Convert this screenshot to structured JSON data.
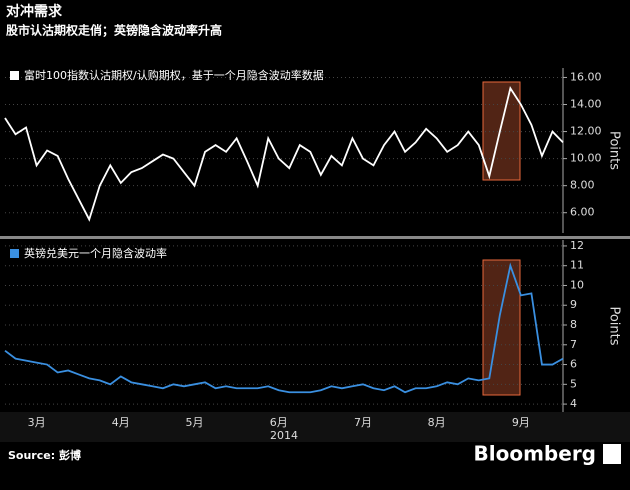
{
  "title": "对冲需求",
  "subtitle": "股市认沽期权走俏；英镑隐含波动率升高",
  "source": "Source: 彭博",
  "brand": "Bloomberg",
  "chart_data": [
    {
      "type": "line",
      "ylabel": "Points",
      "series": [
        {
          "name": "富时100指数认沽期权/认购期权，基于一个月隐含波动率数据",
          "color": "#ffffff",
          "values": [
            13.0,
            11.8,
            12.3,
            9.5,
            10.6,
            10.2,
            8.5,
            7.0,
            5.5,
            8.0,
            9.5,
            8.2,
            9.0,
            9.3,
            9.8,
            10.3,
            10.0,
            9.0,
            8.0,
            10.5,
            11.0,
            10.5,
            11.5,
            9.8,
            8.0,
            11.5,
            10.0,
            9.3,
            11.0,
            10.5,
            8.8,
            10.2,
            9.5,
            11.5,
            10.0,
            9.5,
            11.0,
            12.0,
            10.5,
            11.2,
            12.2,
            11.5,
            10.5,
            11.0,
            12.0,
            11.0,
            8.7,
            12.0,
            15.2,
            14.0,
            12.5,
            10.2,
            12.0,
            11.2
          ]
        }
      ],
      "xlim": [
        0,
        53
      ],
      "ylim": [
        4.5,
        16.7
      ],
      "yticks": [
        {
          "value": 6,
          "label": "6.00"
        },
        {
          "value": 8,
          "label": "8.00"
        },
        {
          "value": 10,
          "label": "10.00"
        },
        {
          "value": 12,
          "label": "12.00"
        },
        {
          "value": 14,
          "label": "14.00"
        },
        {
          "value": 16,
          "label": "16.00"
        }
      ],
      "grid": true
    },
    {
      "type": "line",
      "ylabel": "Points",
      "series": [
        {
          "name": "英镑兑美元一个月隐含波动率",
          "color": "#3a8fe0",
          "values": [
            6.7,
            6.3,
            6.2,
            6.1,
            6.0,
            5.6,
            5.7,
            5.5,
            5.3,
            5.2,
            5.0,
            5.4,
            5.1,
            5.0,
            4.9,
            4.8,
            5.0,
            4.9,
            5.0,
            5.1,
            4.8,
            4.9,
            4.8,
            4.8,
            4.8,
            4.9,
            4.7,
            4.6,
            4.6,
            4.6,
            4.7,
            4.9,
            4.8,
            4.9,
            5.0,
            4.8,
            4.7,
            4.9,
            4.6,
            4.8,
            4.8,
            4.9,
            5.1,
            5.0,
            5.3,
            5.2,
            5.3,
            8.5,
            11.0,
            9.5,
            9.6,
            6.0,
            6.0,
            6.3
          ]
        }
      ],
      "xlim": [
        0,
        53
      ],
      "ylim": [
        3.6,
        12.3
      ],
      "yticks": [
        4,
        5,
        6,
        7,
        8,
        9,
        10,
        11,
        12
      ],
      "xticks": [
        {
          "value": 3,
          "label": "3月"
        },
        {
          "value": 11,
          "label": "4月"
        },
        {
          "value": 18,
          "label": "5月"
        },
        {
          "value": 26,
          "label": "6月"
        },
        {
          "value": 34,
          "label": "7月"
        },
        {
          "value": 41,
          "label": "8月"
        },
        {
          "value": 49,
          "label": "9月"
        }
      ],
      "xlabel": "2014",
      "grid": true
    }
  ]
}
